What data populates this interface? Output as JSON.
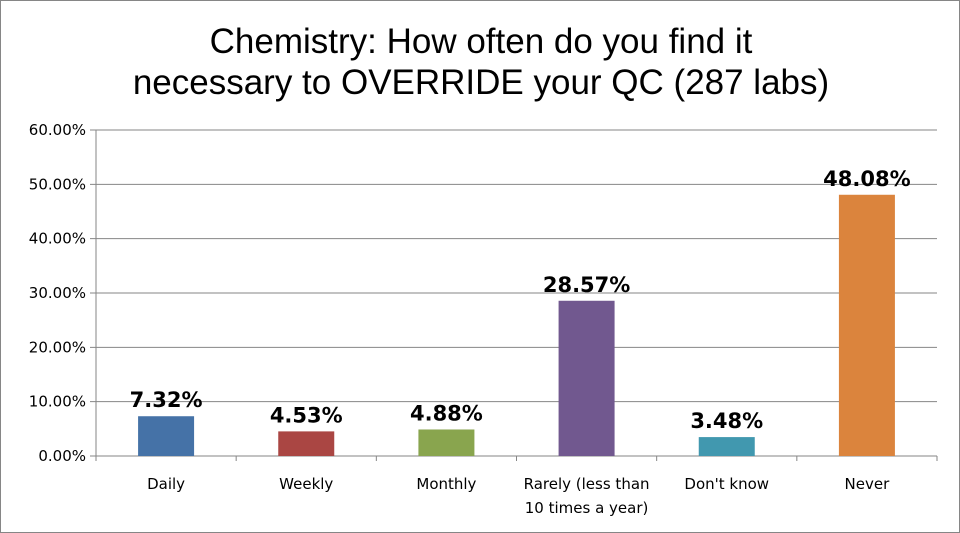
{
  "chart_data": {
    "type": "bar",
    "title_lines": [
      "Chemistry: How often do you find it",
      "necessary to OVERRIDE your QC (287 labs)"
    ],
    "categories": [
      [
        "Daily"
      ],
      [
        "Weekly"
      ],
      [
        "Monthly"
      ],
      [
        "Rarely (less than",
        "10 times a year)"
      ],
      [
        "Don't know"
      ],
      [
        "Never"
      ]
    ],
    "values": [
      7.32,
      4.53,
      4.88,
      28.57,
      3.48,
      48.08
    ],
    "data_labels": [
      "7.32%",
      "4.53%",
      "4.88%",
      "28.57%",
      "3.48%",
      "48.08%"
    ],
    "colors": [
      "#4572A7",
      "#AA4643",
      "#89A54E",
      "#71588F",
      "#4198AF",
      "#DB843D"
    ],
    "ylim": [
      0,
      60
    ],
    "yticks": [
      "0.00%",
      "10.00%",
      "20.00%",
      "30.00%",
      "40.00%",
      "50.00%",
      "60.00%"
    ],
    "grid": true,
    "legend": "none"
  }
}
